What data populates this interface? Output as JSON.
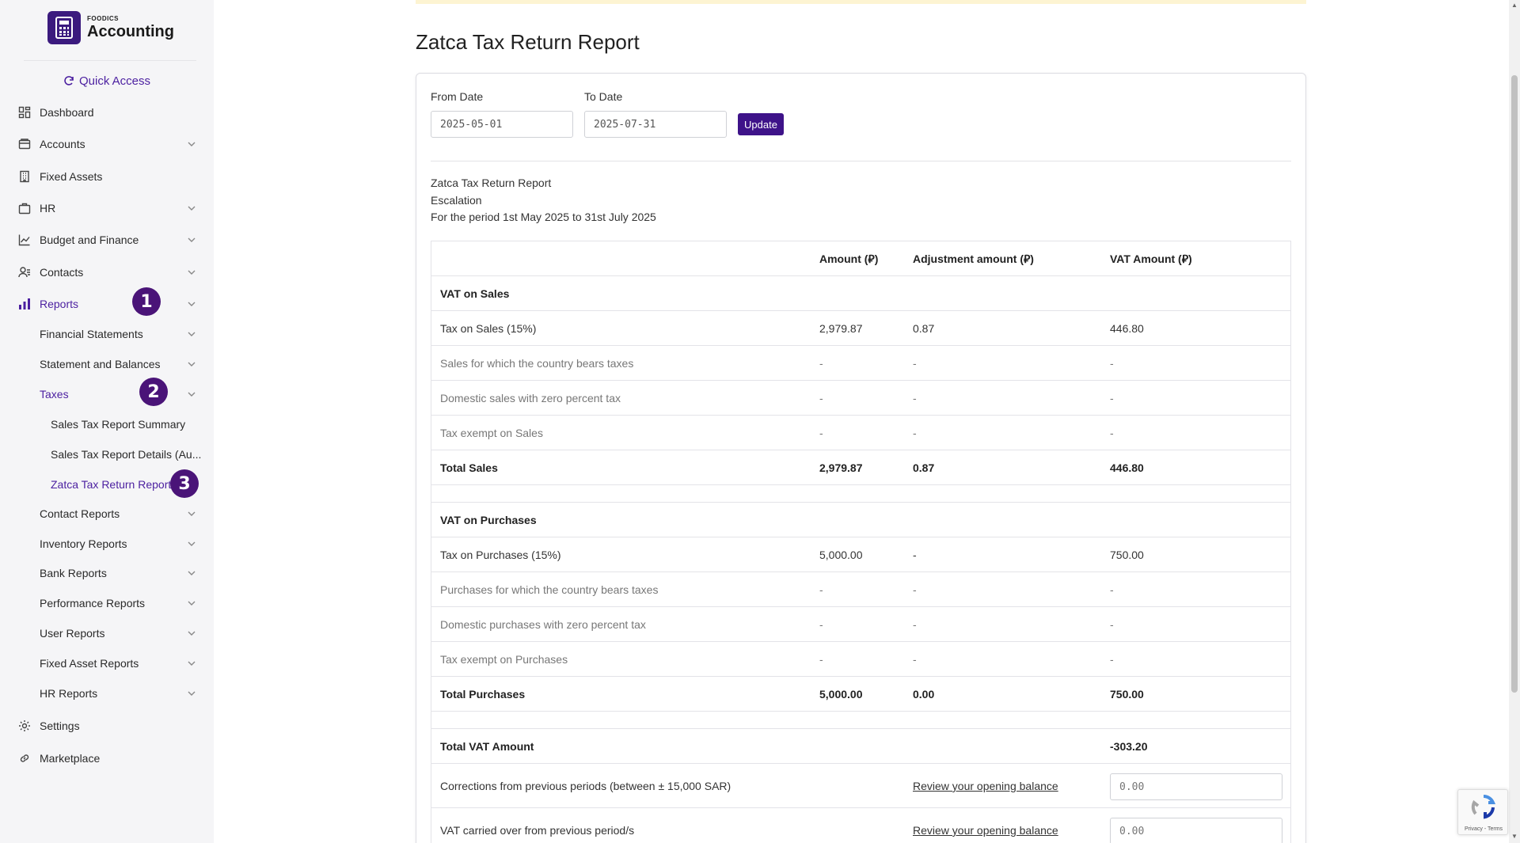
{
  "brand": {
    "small": "FOODICS",
    "name": "Accounting"
  },
  "sidebar": {
    "quick_access": "Quick Access",
    "items": [
      {
        "label": "Dashboard"
      },
      {
        "label": "Accounts"
      },
      {
        "label": "Fixed Assets"
      },
      {
        "label": "HR"
      },
      {
        "label": "Budget and Finance"
      },
      {
        "label": "Contacts"
      },
      {
        "label": "Reports"
      },
      {
        "label": "Financial Statements"
      },
      {
        "label": "Statement and Balances"
      },
      {
        "label": "Taxes"
      },
      {
        "label": "Sales Tax Report Summary"
      },
      {
        "label": "Sales Tax Report Details (Au..."
      },
      {
        "label": "Zatca Tax Return Report"
      },
      {
        "label": "Contact Reports"
      },
      {
        "label": "Inventory Reports"
      },
      {
        "label": "Bank Reports"
      },
      {
        "label": "Performance Reports"
      },
      {
        "label": "User Reports"
      },
      {
        "label": "Fixed Asset Reports"
      },
      {
        "label": "HR Reports"
      },
      {
        "label": "Settings"
      },
      {
        "label": "Marketplace"
      }
    ],
    "badges": [
      "1",
      "2",
      "3"
    ]
  },
  "page": {
    "title": "Zatca Tax Return Report"
  },
  "filters": {
    "from_label": "From Date",
    "from_value": "2025-05-01",
    "to_label": "To Date",
    "to_value": "2025-07-31",
    "update_label": "Update"
  },
  "report": {
    "title": "Zatca Tax Return Report",
    "company": "Escalation",
    "period": "For the period 1st May 2025 to 31st July 2025"
  },
  "table": {
    "headers": [
      "",
      "Amount (⃁)",
      "Adjustment amount (⃁)",
      "VAT Amount (⃁)"
    ],
    "sales_section": "VAT on Sales",
    "sales_rows": [
      [
        "Tax on Sales (15%)",
        "2,979.87",
        "0.87",
        "446.80"
      ],
      [
        "Sales for which the country bears taxes",
        "-",
        "-",
        "-"
      ],
      [
        "Domestic sales with zero percent tax",
        "-",
        "-",
        "-"
      ],
      [
        "Tax exempt on Sales",
        "-",
        "-",
        "-"
      ]
    ],
    "sales_total": [
      "Total Sales",
      "2,979.87",
      "0.87",
      "446.80"
    ],
    "purchases_section": "VAT on Purchases",
    "purchase_rows": [
      [
        "Tax on Purchases (15%)",
        "5,000.00",
        "-",
        "750.00"
      ],
      [
        "Purchases for which the country bears taxes",
        "-",
        "-",
        "-"
      ],
      [
        "Domestic purchases with zero percent tax",
        "-",
        "-",
        "-"
      ],
      [
        "Tax exempt on Purchases",
        "-",
        "-",
        "-"
      ]
    ],
    "purchases_total": [
      "Total Purchases",
      "5,000.00",
      "0.00",
      "750.00"
    ],
    "total_vat_label": "Total VAT Amount",
    "total_vat_value": "-303.20",
    "corrections_label": "Corrections from previous periods (between ± 15,000 SAR)",
    "corrections_link": "Review your opening balance",
    "corrections_value": "0.00",
    "carried_label": "VAT carried over from previous period/s",
    "carried_link": "Review your opening balance",
    "carried_value": "0.00"
  },
  "recaptcha": {
    "text": "Privacy - Terms"
  },
  "colors": {
    "accent": "#4b1fa0",
    "brand": "#3b1a7e",
    "badge": "#4a1478",
    "banner": "#fdf4d2"
  }
}
